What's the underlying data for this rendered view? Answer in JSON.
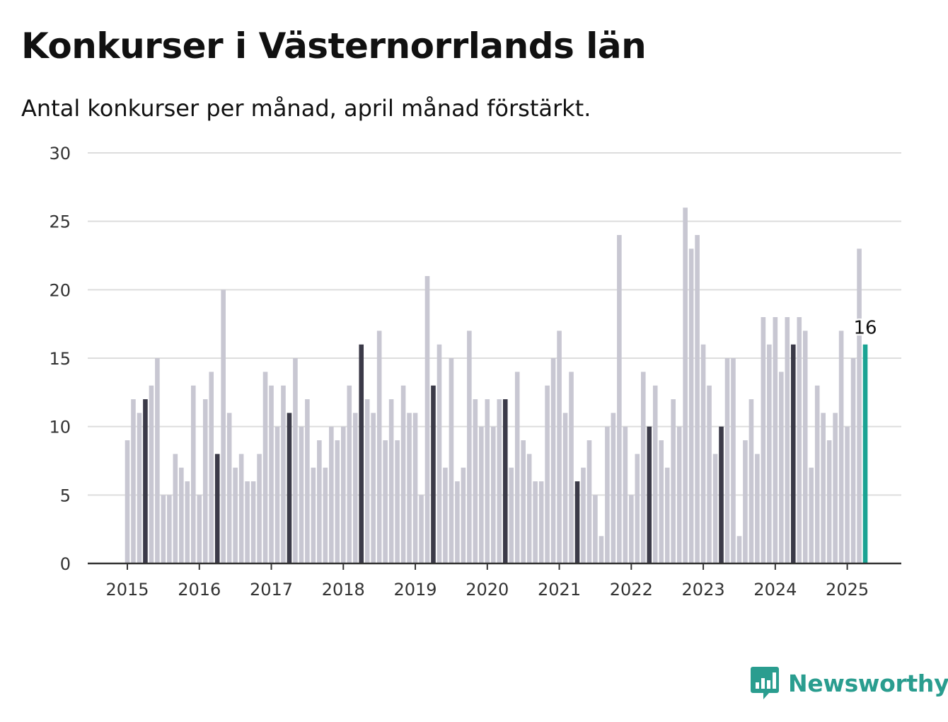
{
  "title": "Konkurser i Västernorrlands län",
  "subtitle": "Antal konkurser per månad, april månad förstärkt.",
  "brand": {
    "name": "Newsworthy",
    "color": "#2a9d8f",
    "icon": "newsworthy-chart-bubble-icon"
  },
  "chart_data": {
    "type": "bar",
    "title": "Konkurser i Västernorrlands län",
    "subtitle": "Antal konkurser per månad, april månad förstärkt.",
    "start": "2015-01",
    "values": [
      9,
      12,
      11,
      12,
      13,
      15,
      5,
      5,
      8,
      7,
      6,
      13,
      5,
      12,
      14,
      8,
      20,
      11,
      7,
      8,
      6,
      6,
      8,
      14,
      13,
      10,
      13,
      11,
      15,
      10,
      12,
      7,
      9,
      7,
      10,
      9,
      10,
      13,
      11,
      16,
      12,
      11,
      17,
      9,
      12,
      9,
      13,
      11,
      11,
      5,
      21,
      13,
      16,
      7,
      15,
      6,
      7,
      17,
      12,
      10,
      12,
      10,
      12,
      12,
      7,
      14,
      9,
      8,
      6,
      6,
      13,
      15,
      17,
      11,
      14,
      6,
      7,
      9,
      5,
      2,
      10,
      11,
      24,
      10,
      5,
      8,
      14,
      10,
      13,
      9,
      7,
      12,
      10,
      26,
      23,
      24,
      16,
      13,
      8,
      10,
      15,
      15,
      2,
      9,
      12,
      8,
      18,
      16,
      18,
      14,
      18,
      16,
      18,
      17,
      7,
      13,
      11,
      9,
      11,
      17,
      10,
      15,
      23,
      16
    ],
    "highlight_month": 4,
    "x_tick_labels": [
      "2015",
      "2016",
      "2017",
      "2018",
      "2019",
      "2020",
      "2021",
      "2022",
      "2023",
      "2024",
      "2025"
    ],
    "y_ticks": [
      0,
      5,
      10,
      15,
      20,
      25,
      30
    ],
    "ylim": [
      0,
      30
    ],
    "xlabel": "",
    "ylabel": "",
    "grid": true,
    "last_value_label": "16",
    "colors": {
      "bar": "#c8c7d2",
      "highlight": "#3b3a48",
      "latest": "#1aa393",
      "grid": "#dddddd",
      "axis": "#333333"
    }
  }
}
